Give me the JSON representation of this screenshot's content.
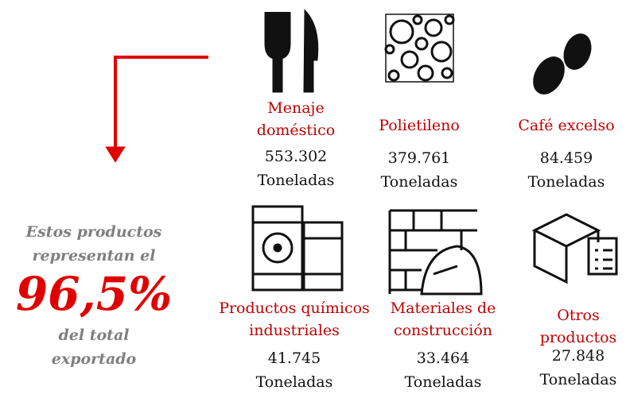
{
  "summary": {
    "intro": "Estos productos representan el",
    "percent": "96,5%",
    "outro": "del total exportado"
  },
  "products": [
    {
      "name": "Menaje doméstico",
      "value": "553.302",
      "unit": "Toneladas"
    },
    {
      "name": "Polietileno",
      "value": "379.761",
      "unit": "Toneladas"
    },
    {
      "name": "Café excelso",
      "value": "84.459",
      "unit": "Toneladas"
    },
    {
      "name": "Productos químicos industriales",
      "value": "41.745",
      "unit": "Toneladas"
    },
    {
      "name": "Materiales de construcción",
      "value": "33.464",
      "unit": "Toneladas"
    },
    {
      "name": "Otros productos",
      "value": "27.848",
      "unit": "Toneladas"
    }
  ]
}
